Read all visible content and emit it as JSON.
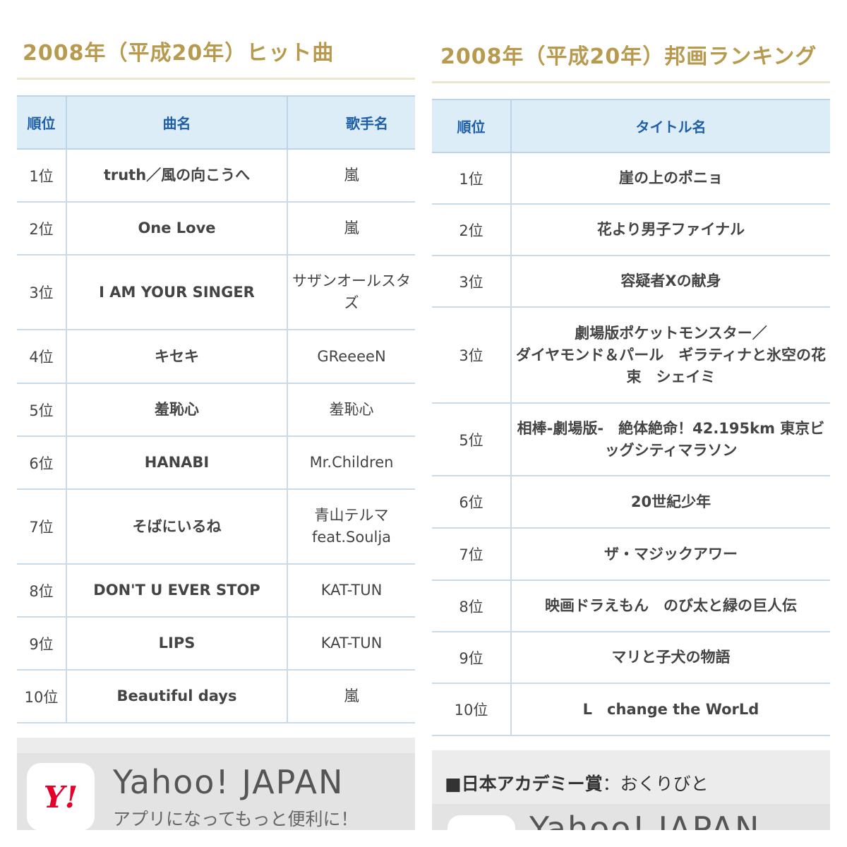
{
  "songs": {
    "title": "2008年（平成20年）ヒット曲",
    "headers": {
      "rank": "順位",
      "song": "曲名",
      "artist": "歌手名"
    },
    "rows": [
      {
        "rank": "1位",
        "song": "truth／風の向こうへ",
        "artist": "嵐"
      },
      {
        "rank": "2位",
        "song": "One Love",
        "artist": "嵐"
      },
      {
        "rank": "3位",
        "song": "I AM YOUR SINGER",
        "artist_line1": "サザンオールスタ",
        "artist_line2": "ズ"
      },
      {
        "rank": "4位",
        "song": "キセキ",
        "artist": "GReeeeN"
      },
      {
        "rank": "5位",
        "song": "羞恥心",
        "artist": "羞恥心"
      },
      {
        "rank": "6位",
        "song": "HANABI",
        "artist": "Mr.Children"
      },
      {
        "rank": "7位",
        "song": "そばにいるね",
        "artist_line1": "青山テルマ",
        "artist_line2": "feat.Soulja"
      },
      {
        "rank": "8位",
        "song": "DON'T U EVER STOP",
        "artist": "KAT-TUN"
      },
      {
        "rank": "9位",
        "song": "LIPS",
        "artist": "KAT-TUN"
      },
      {
        "rank": "10位",
        "song": "Beautiful days",
        "artist": "嵐"
      }
    ],
    "ad": {
      "name": "Yahoo! JAPAN",
      "tagline": "アプリになってもっと便利に！",
      "logo_text": "Y!"
    }
  },
  "films": {
    "title": "2008年（平成20年）邦画ランキング",
    "headers": {
      "rank": "順位",
      "title": "タイトル名"
    },
    "rows": [
      {
        "rank": "1位",
        "title": "崖の上のポニョ"
      },
      {
        "rank": "2位",
        "title": "花より男子ファイナル"
      },
      {
        "rank": "3位",
        "title": "容疑者Xの献身"
      },
      {
        "rank": "3位",
        "title_line1": "劇場版ポケットモンスター／",
        "title_line2": "ダイヤモンド＆パール　ギラティナと氷空の花",
        "title_line3": "束　シェイミ"
      },
      {
        "rank": "5位",
        "title_line1": "相棒-劇場版-　絶体絶命！42.195km 東京ビ",
        "title_line2": "ッグシティマラソン"
      },
      {
        "rank": "6位",
        "title": "20世紀少年"
      },
      {
        "rank": "7位",
        "title": "ザ・マジックアワー"
      },
      {
        "rank": "8位",
        "title": "映画ドラえもん　のび太と緑の巨人伝"
      },
      {
        "rank": "9位",
        "title": "マリと子犬の物語"
      },
      {
        "rank": "10位",
        "title": "L　change the WorLd"
      }
    ],
    "academy": {
      "label": "■日本アカデミー賞",
      "separator": "：",
      "winner": "おくりびと"
    },
    "ad": {
      "name": "Yahoo! JAPAN"
    }
  },
  "colors": {
    "heading_gold": "#b79a4e",
    "link_blue": "#1c4fa3",
    "header_bg": "#dcedf7",
    "brand_red": "#e4002b"
  }
}
